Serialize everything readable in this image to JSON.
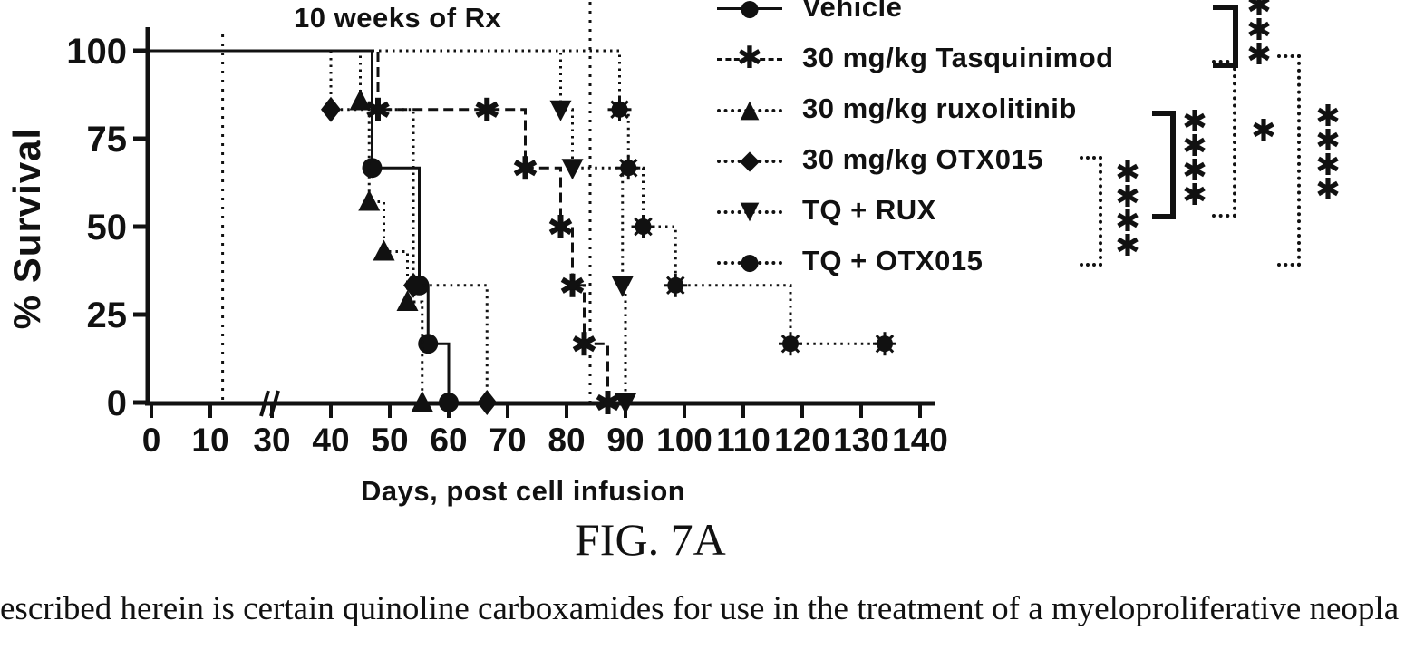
{
  "figure": {
    "caption": "FIG. 7A"
  },
  "document_text": "escribed herein is certain quinoline carboxamides for use in the treatment of a myeloproliferative neopla",
  "chart_data": {
    "type": "line",
    "subtype": "kaplan-meier-survival-steps",
    "annotation": "10 weeks of Rx",
    "ylabel": "% Survival",
    "xlabel": "Days, post cell infusion",
    "y_ticks": [
      0,
      25,
      50,
      75,
      100
    ],
    "ylim": [
      0,
      100
    ],
    "x_ticks": [
      0,
      10,
      30,
      40,
      50,
      60,
      70,
      80,
      90,
      100,
      110,
      120,
      130,
      140
    ],
    "x_axis_break_between": [
      10,
      30
    ],
    "reference_lines_days": [
      14,
      84
    ],
    "grid": "off",
    "legend_position": "top-right",
    "series": [
      {
        "name": "Vehicle",
        "marker": "circle",
        "glyph": "●",
        "line": "solid",
        "events": [
          [
            47,
            66.7
          ],
          [
            55,
            33.3
          ],
          [
            56.5,
            16.7
          ],
          [
            60,
            0
          ]
        ]
      },
      {
        "name": "30 mg/kg Tasquinimod",
        "marker": "star",
        "glyph": "✱",
        "line": "dashed",
        "events": [
          [
            48,
            83.3
          ],
          [
            73,
            66.7
          ],
          [
            79,
            50
          ],
          [
            81,
            33.3
          ],
          [
            83,
            16.7
          ],
          [
            87,
            0
          ]
        ],
        "censor_markers": [
          [
            66.5,
            83.3
          ]
        ]
      },
      {
        "name": "30 mg/kg ruxolitinib",
        "marker": "triangle-up",
        "glyph": "▲",
        "line": "dotted",
        "events": [
          [
            45,
            85.7
          ],
          [
            46.5,
            57.1
          ],
          [
            49,
            42.9
          ],
          [
            53,
            28.6
          ],
          [
            55.5,
            0
          ]
        ]
      },
      {
        "name": "30 mg/kg OTX015",
        "marker": "diamond",
        "glyph": "◆",
        "line": "dotted",
        "events": [
          [
            40,
            83.3
          ],
          [
            54,
            33.3
          ],
          [
            66.5,
            0
          ]
        ]
      },
      {
        "name": "TQ + RUX",
        "marker": "triangle-down",
        "glyph": "▼",
        "line": "dotted",
        "events": [
          [
            79,
            83.3
          ],
          [
            81,
            66.7
          ],
          [
            89.5,
            33.3
          ],
          [
            90,
            0
          ]
        ]
      },
      {
        "name": "TQ + OTX015",
        "marker": "sun",
        "glyph": "●",
        "line": "dotted",
        "events": [
          [
            89,
            83.3
          ],
          [
            90.5,
            66.7
          ],
          [
            93,
            50
          ],
          [
            98.5,
            33.3
          ],
          [
            118,
            16.7
          ]
        ],
        "end_day": 134,
        "end_marker": true
      }
    ],
    "significance_brackets": [
      {
        "between": [
          "Vehicle",
          "30 mg/kg Tasquinimod"
        ],
        "label": "✱✱✱",
        "style": "solid"
      },
      {
        "between": [
          "30 mg/kg Tasquinimod",
          "TQ + RUX"
        ],
        "label": "✱",
        "style": "dotted"
      },
      {
        "between": [
          "30 mg/kg ruxolitinib",
          "TQ + RUX"
        ],
        "label": "✱✱✱✱",
        "style": "solid"
      },
      {
        "between": [
          "30 mg/kg Tasquinimod",
          "TQ + OTX015"
        ],
        "label": "✱✱✱✱",
        "style": "dotted"
      },
      {
        "between": [
          "30 mg/kg OTX015",
          "TQ + OTX015"
        ],
        "label": "✱✱✱✱",
        "style": "dotted"
      }
    ]
  }
}
